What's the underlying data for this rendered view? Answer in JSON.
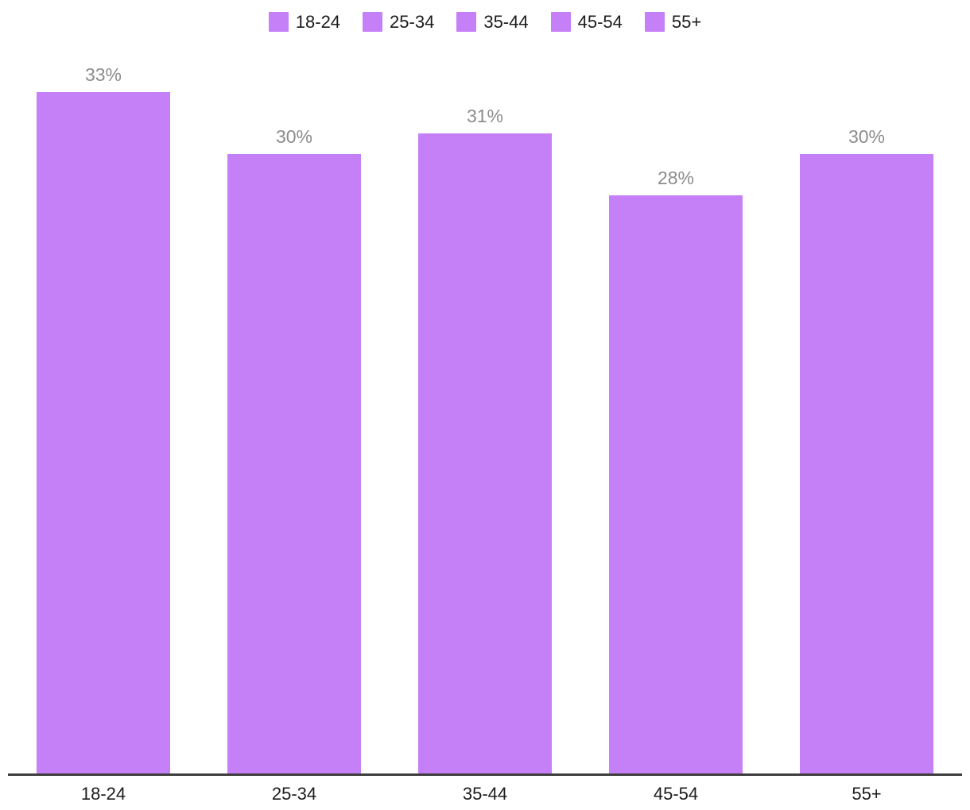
{
  "chart_data": {
    "type": "bar",
    "categories": [
      "18-24",
      "25-34",
      "35-44",
      "45-54",
      "55+"
    ],
    "values": [
      33,
      30,
      31,
      28,
      30
    ],
    "value_labels": [
      "33%",
      "30%",
      "31%",
      "28%",
      "30%"
    ],
    "title": "",
    "xlabel": "",
    "ylabel": "",
    "ylim": [
      0,
      35.9
    ],
    "grid": false,
    "legend": {
      "position": "top-center",
      "entries": [
        "18-24",
        "25-34",
        "35-44",
        "45-54",
        "55+"
      ]
    },
    "colors": {
      "bar": "#c57ff7",
      "value_label": "#8c8c8c",
      "axis_line": "#3d3d3d",
      "tick_label": "#1c1c1c",
      "legend_text": "#1c1c1c",
      "background": "#ffffff"
    }
  }
}
